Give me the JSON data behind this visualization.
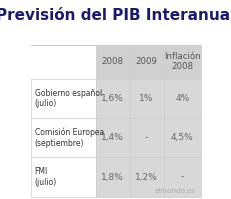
{
  "title": "Previsión del PIB Interanual",
  "title_fontsize": 11,
  "col_headers": [
    "2008",
    "2009",
    "Inflación\n2008"
  ],
  "row_labels": [
    "Gobierno español\n(julio)",
    "Comisión Europea\n(septiembre)",
    "FMI\n(julio)"
  ],
  "table_data": [
    [
      "1,6%",
      "1%",
      "4%"
    ],
    [
      "1,4%",
      "-",
      "4,5%"
    ],
    [
      "1,8%",
      "1,2%",
      "-"
    ]
  ],
  "col_header_bg": "#d0d0d0",
  "data_col_bg": "#d8d8d8",
  "row_label_bg": "#ffffff",
  "header_text_color": "#555555",
  "data_text_color": "#666666",
  "row_label_text_color": "#333333",
  "title_color": "#1a1a6e",
  "watermark": "elmundo.es",
  "watermark_color": "#aaaaaa",
  "bg_color": "#ffffff",
  "border_color": "#cccccc"
}
